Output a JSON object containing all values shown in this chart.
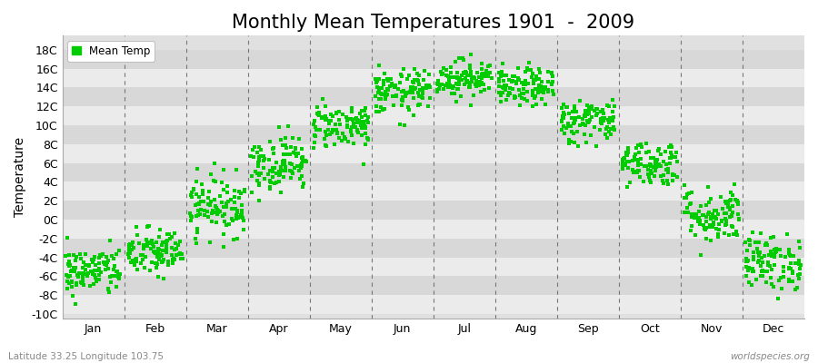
{
  "title": "Monthly Mean Temperatures 1901  -  2009",
  "ylabel": "Temperature",
  "dot_color": "#00cc00",
  "background_color": "#ffffff",
  "panel_color": "#e0e0e0",
  "legend_label": "Mean Temp",
  "footer_left": "Latitude 33.25 Longitude 103.75",
  "footer_right": "worldspecies.org",
  "ytick_labels": [
    "-10C",
    "-8C",
    "-6C",
    "-4C",
    "-2C",
    "0C",
    "2C",
    "4C",
    "6C",
    "8C",
    "10C",
    "12C",
    "14C",
    "16C",
    "18C"
  ],
  "ytick_values": [
    -10,
    -8,
    -6,
    -4,
    -2,
    0,
    2,
    4,
    6,
    8,
    10,
    12,
    14,
    16,
    18
  ],
  "ylim": [
    -10.5,
    19.5
  ],
  "months": [
    "Jan",
    "Feb",
    "Mar",
    "Apr",
    "May",
    "Jun",
    "Jul",
    "Aug",
    "Sep",
    "Oct",
    "Nov",
    "Dec"
  ],
  "month_means": [
    -5.5,
    -3.5,
    1.5,
    6.0,
    10.0,
    13.5,
    15.0,
    14.0,
    10.5,
    6.0,
    0.5,
    -4.5
  ],
  "month_stds": [
    1.3,
    1.3,
    1.6,
    1.5,
    1.2,
    1.2,
    1.0,
    1.0,
    1.2,
    1.2,
    1.5,
    1.5
  ],
  "n_years": 109,
  "title_fontsize": 15,
  "axis_fontsize": 10,
  "tick_fontsize": 9,
  "band_color_light": "#ebebeb",
  "band_color_dark": "#d8d8d8"
}
